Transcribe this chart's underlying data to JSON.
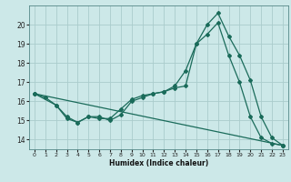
{
  "xlabel": "Humidex (Indice chaleur)",
  "bg_color": "#cce8e8",
  "grid_color": "#aacccc",
  "line_color": "#1a6b5a",
  "xlim": [
    -0.5,
    23.5
  ],
  "ylim": [
    13.5,
    21.0
  ],
  "yticks": [
    14,
    15,
    16,
    17,
    18,
    19,
    20
  ],
  "xticks": [
    0,
    1,
    2,
    3,
    4,
    5,
    6,
    7,
    8,
    9,
    10,
    11,
    12,
    13,
    14,
    15,
    16,
    17,
    18,
    19,
    20,
    21,
    22,
    23
  ],
  "line1_x": [
    0,
    1,
    2,
    3,
    4,
    5,
    6,
    7,
    8,
    9,
    10,
    11,
    12,
    13,
    14,
    15,
    16,
    17,
    18,
    19,
    20,
    21,
    22,
    23
  ],
  "line1_y": [
    16.4,
    16.2,
    15.8,
    15.2,
    14.9,
    15.2,
    15.1,
    15.1,
    15.6,
    16.1,
    16.3,
    16.4,
    16.5,
    16.7,
    16.8,
    19.0,
    20.0,
    20.6,
    19.4,
    18.4,
    17.1,
    15.2,
    14.1,
    13.7
  ],
  "line2_x": [
    0,
    2,
    3,
    4,
    5,
    6,
    7,
    8,
    9,
    10,
    11,
    12,
    13,
    14,
    15,
    16,
    17,
    18,
    19,
    20,
    21,
    22,
    23
  ],
  "line2_y": [
    16.4,
    15.8,
    15.1,
    14.9,
    15.2,
    15.2,
    15.0,
    15.3,
    16.0,
    16.2,
    16.4,
    16.5,
    16.8,
    17.6,
    19.0,
    19.5,
    20.1,
    18.4,
    17.0,
    15.2,
    14.1,
    13.8,
    13.7
  ],
  "line3_x": [
    0,
    23
  ],
  "line3_y": [
    16.4,
    13.7
  ]
}
